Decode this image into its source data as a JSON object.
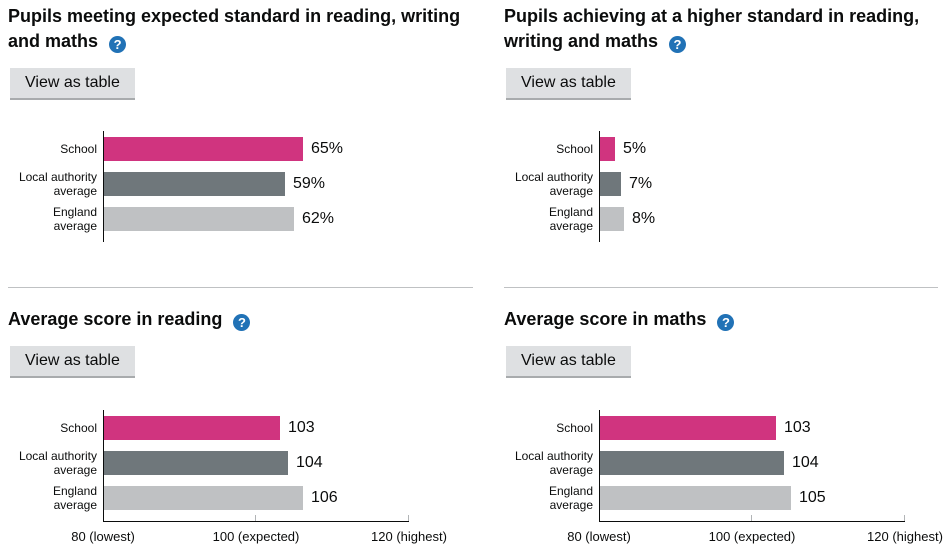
{
  "page": {
    "view_as_table_label": "View as table"
  },
  "icons": {
    "help_glyph": "?"
  },
  "colors": {
    "school_bar": "#d0347f",
    "local_authority_bar": "#6f777b",
    "england_bar": "#bfc1c3",
    "help_icon_bg": "#2172b6",
    "button_bg": "#dee0e2",
    "button_shadow": "#a8abad",
    "divider": "#bfc1c3",
    "axis": "#0b0c0c",
    "text": "#0b0c0c"
  },
  "chart_data": [
    {
      "type": "bar",
      "orientation": "horizontal",
      "title": "Pupils meeting expected standard in reading, writing and maths",
      "categories": [
        "School",
        "Local authority average",
        "England average"
      ],
      "values": [
        65,
        59,
        62
      ],
      "value_labels": [
        "65%",
        "59%",
        "62%"
      ],
      "xlim": [
        0,
        100
      ],
      "bar_colors": [
        "#d0347f",
        "#6f777b",
        "#bfc1c3"
      ],
      "axis_ticks": []
    },
    {
      "type": "bar",
      "orientation": "horizontal",
      "title": "Pupils achieving at a higher standard in reading, writing and maths",
      "categories": [
        "School",
        "Local authority average",
        "England average"
      ],
      "values": [
        5,
        7,
        8
      ],
      "value_labels": [
        "5%",
        "7%",
        "8%"
      ],
      "xlim": [
        0,
        100
      ],
      "bar_colors": [
        "#d0347f",
        "#6f777b",
        "#bfc1c3"
      ],
      "axis_ticks": []
    },
    {
      "type": "bar",
      "orientation": "horizontal",
      "title": "Average score in reading",
      "categories": [
        "School",
        "Local authority average",
        "England average"
      ],
      "values": [
        103,
        104,
        106
      ],
      "value_labels": [
        "103",
        "104",
        "106"
      ],
      "xlim": [
        80,
        120
      ],
      "bar_colors": [
        "#d0347f",
        "#6f777b",
        "#bfc1c3"
      ],
      "axis_ticks": [
        {
          "value": 80,
          "label": "80 (lowest)"
        },
        {
          "value": 100,
          "label": "100 (expected)"
        },
        {
          "value": 120,
          "label": "120 (highest)"
        }
      ]
    },
    {
      "type": "bar",
      "orientation": "horizontal",
      "title": "Average score in maths",
      "categories": [
        "School",
        "Local authority average",
        "England average"
      ],
      "values": [
        103,
        104,
        105
      ],
      "value_labels": [
        "103",
        "104",
        "105"
      ],
      "xlim": [
        80,
        120
      ],
      "bar_colors": [
        "#d0347f",
        "#6f777b",
        "#bfc1c3"
      ],
      "axis_ticks": [
        {
          "value": 80,
          "label": "80 (lowest)"
        },
        {
          "value": 100,
          "label": "100 (expected)"
        },
        {
          "value": 120,
          "label": "120 (highest)"
        }
      ]
    }
  ]
}
